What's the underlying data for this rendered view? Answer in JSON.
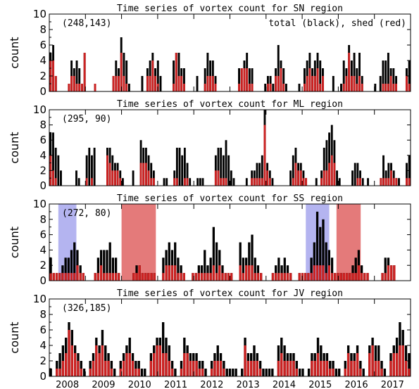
{
  "chart_data": [
    {
      "type": "bar",
      "title": "Time series of vortex count for SN region",
      "ylabel": "count",
      "ylim": [
        0,
        10
      ],
      "yticks": [
        0,
        2,
        4,
        6,
        8,
        10
      ],
      "corner_label": "(248,143)",
      "legend_text": "total (black), shed (red)",
      "series": [
        {
          "name": "total",
          "color": "#000000",
          "values": [
            5,
            6,
            2,
            0,
            0,
            0,
            0,
            1,
            4,
            3,
            4,
            3,
            1,
            5,
            0,
            0,
            0,
            1,
            0,
            0,
            0,
            0,
            0,
            0,
            2,
            4,
            3,
            7,
            5,
            4,
            1,
            0,
            0,
            0,
            0,
            2,
            0,
            3,
            4,
            5,
            3,
            4,
            2,
            0,
            0,
            0,
            0,
            4,
            5,
            5,
            3,
            3,
            0,
            0,
            0,
            0,
            2,
            0,
            0,
            3,
            5,
            4,
            4,
            2,
            0,
            0,
            0,
            0,
            0,
            0,
            0,
            0,
            3,
            3,
            4,
            5,
            3,
            3,
            0,
            0,
            0,
            0,
            1,
            2,
            2,
            1,
            3,
            6,
            4,
            3,
            1,
            0,
            0,
            0,
            0,
            1,
            0,
            3,
            4,
            5,
            3,
            4,
            5,
            4,
            3,
            0,
            0,
            0,
            2,
            0,
            0,
            1,
            4,
            3,
            6,
            4,
            5,
            3,
            5,
            2,
            0,
            0,
            0,
            0,
            1,
            0,
            2,
            4,
            4,
            5,
            3,
            3,
            2,
            0,
            0,
            0,
            3,
            4
          ]
        },
        {
          "name": "shed",
          "color": "#cc2222",
          "values": [
            4,
            4,
            2,
            0,
            0,
            0,
            0,
            1,
            2,
            2,
            1,
            1,
            1,
            5,
            0,
            0,
            0,
            1,
            0,
            0,
            0,
            0,
            0,
            0,
            2,
            2,
            2,
            5,
            2,
            1,
            0,
            0,
            0,
            0,
            0,
            0,
            0,
            2,
            2,
            4,
            2,
            1,
            0,
            0,
            0,
            0,
            0,
            1,
            5,
            2,
            2,
            1,
            0,
            0,
            0,
            0,
            0,
            0,
            0,
            1,
            2,
            2,
            2,
            1,
            0,
            0,
            0,
            0,
            0,
            0,
            0,
            0,
            1,
            3,
            3,
            3,
            1,
            1,
            0,
            0,
            0,
            0,
            0,
            1,
            1,
            0,
            2,
            2,
            3,
            1,
            0,
            0,
            0,
            0,
            0,
            0,
            0,
            1,
            2,
            3,
            2,
            2,
            3,
            1,
            2,
            0,
            0,
            0,
            0,
            0,
            0,
            0,
            1,
            2,
            5,
            2,
            2,
            1,
            2,
            1,
            0,
            0,
            0,
            0,
            0,
            0,
            0,
            1,
            1,
            1,
            2,
            1,
            1,
            0,
            0,
            0,
            2,
            1
          ]
        }
      ]
    },
    {
      "type": "bar",
      "title": "Time series of vortex count for ML region",
      "ylabel": "count",
      "ylim": [
        0,
        10
      ],
      "yticks": [
        0,
        2,
        4,
        6,
        8,
        10
      ],
      "corner_label": "(295, 90)",
      "series": [
        {
          "name": "total",
          "color": "#000000",
          "values": [
            7,
            7,
            5,
            4,
            2,
            0,
            0,
            0,
            0,
            0,
            2,
            1,
            0,
            0,
            4,
            5,
            4,
            5,
            0,
            0,
            0,
            0,
            5,
            5,
            4,
            3,
            3,
            2,
            1,
            0,
            0,
            0,
            2,
            0,
            0,
            6,
            5,
            5,
            4,
            3,
            2,
            0,
            0,
            0,
            1,
            1,
            0,
            0,
            2,
            5,
            5,
            4,
            5,
            3,
            1,
            0,
            0,
            1,
            1,
            1,
            0,
            0,
            0,
            0,
            4,
            5,
            5,
            4,
            6,
            4,
            2,
            1,
            0,
            0,
            0,
            0,
            1,
            0,
            2,
            2,
            3,
            3,
            4,
            10,
            3,
            2,
            1,
            0,
            0,
            0,
            0,
            0,
            0,
            2,
            4,
            5,
            3,
            3,
            2,
            1,
            0,
            0,
            0,
            1,
            0,
            2,
            5,
            6,
            7,
            8,
            6,
            2,
            1,
            0,
            0,
            0,
            0,
            2,
            3,
            3,
            2,
            1,
            0,
            1,
            0,
            0,
            0,
            0,
            1,
            4,
            2,
            3,
            3,
            2,
            1,
            1,
            0,
            0,
            3,
            4
          ]
        },
        {
          "name": "shed",
          "color": "#cc2222",
          "values": [
            4,
            2,
            1,
            0,
            0,
            0,
            0,
            0,
            0,
            0,
            0,
            0,
            0,
            0,
            1,
            0,
            1,
            0,
            0,
            0,
            0,
            0,
            4,
            3,
            2,
            2,
            2,
            1,
            0,
            0,
            0,
            0,
            0,
            0,
            0,
            3,
            3,
            3,
            2,
            1,
            1,
            0,
            0,
            0,
            0,
            0,
            0,
            0,
            1,
            1,
            0,
            0,
            1,
            1,
            0,
            0,
            0,
            0,
            0,
            0,
            0,
            0,
            0,
            0,
            2,
            2,
            1,
            1,
            1,
            0,
            0,
            0,
            0,
            0,
            0,
            0,
            0,
            0,
            1,
            1,
            1,
            1,
            1,
            8,
            2,
            1,
            0,
            0,
            0,
            0,
            0,
            0,
            0,
            0,
            1,
            3,
            2,
            2,
            1,
            1,
            0,
            0,
            0,
            0,
            0,
            1,
            2,
            2,
            3,
            4,
            3,
            0,
            0,
            0,
            0,
            0,
            0,
            0,
            0,
            1,
            1,
            0,
            0,
            0,
            0,
            0,
            0,
            0,
            1,
            1,
            1,
            1,
            2,
            1,
            1,
            0,
            0,
            0,
            1,
            1
          ]
        }
      ]
    },
    {
      "type": "bar",
      "title": "Time series of vortex count for SS region",
      "ylabel": "count",
      "ylim": [
        0,
        10
      ],
      "yticks": [
        0,
        2,
        4,
        6,
        8,
        10
      ],
      "corner_label": "(272, 80)",
      "shaded_periods": [
        {
          "start": 2008.25,
          "end": 2008.75,
          "color": "#b4b4f0"
        },
        {
          "start": 2010.0,
          "end": 2010.95,
          "color": "#e47a7a"
        },
        {
          "start": 2015.1,
          "end": 2015.75,
          "color": "#b4b4f0"
        },
        {
          "start": 2015.95,
          "end": 2016.62,
          "color": "#e47a7a"
        }
      ],
      "series": [
        {
          "name": "total",
          "color": "#000000",
          "values": [
            3,
            1,
            1,
            1,
            2,
            3,
            3,
            4,
            5,
            4,
            2,
            1,
            0,
            0,
            0,
            1,
            3,
            4,
            4,
            4,
            5,
            3,
            3,
            1,
            0,
            0,
            0,
            0,
            1,
            2,
            2,
            1,
            1,
            1,
            1,
            1,
            0,
            0,
            3,
            4,
            5,
            4,
            5,
            3,
            2,
            1,
            0,
            0,
            1,
            1,
            2,
            2,
            4,
            2,
            3,
            7,
            5,
            4,
            2,
            1,
            1,
            1,
            0,
            0,
            5,
            3,
            3,
            5,
            6,
            3,
            2,
            1,
            0,
            0,
            0,
            1,
            2,
            3,
            2,
            3,
            2,
            1,
            0,
            0,
            1,
            1,
            1,
            1,
            3,
            5,
            9,
            7,
            8,
            5,
            4,
            3,
            1,
            1,
            1,
            1,
            1,
            1,
            2,
            3,
            4,
            2,
            1,
            1,
            0,
            0,
            0,
            0,
            1,
            3,
            3,
            2,
            2,
            0,
            0,
            0,
            0,
            0
          ]
        },
        {
          "name": "shed",
          "color": "#cc2222",
          "values": [
            1,
            1,
            1,
            1,
            1,
            1,
            1,
            1,
            1,
            2,
            1,
            1,
            0,
            0,
            0,
            1,
            1,
            2,
            1,
            1,
            1,
            1,
            1,
            1,
            0,
            0,
            0,
            0,
            1,
            1,
            2,
            1,
            1,
            1,
            1,
            1,
            0,
            0,
            1,
            2,
            2,
            2,
            2,
            1,
            1,
            1,
            0,
            0,
            1,
            1,
            1,
            1,
            1,
            1,
            1,
            2,
            1,
            2,
            1,
            1,
            1,
            1,
            0,
            0,
            2,
            1,
            2,
            2,
            2,
            1,
            1,
            1,
            0,
            0,
            0,
            1,
            1,
            1,
            1,
            1,
            1,
            1,
            0,
            0,
            1,
            1,
            1,
            1,
            1,
            2,
            2,
            2,
            2,
            1,
            2,
            1,
            1,
            1,
            1,
            1,
            1,
            1,
            1,
            1,
            2,
            1,
            1,
            1,
            0,
            0,
            0,
            0,
            1,
            1,
            2,
            2,
            2,
            0,
            0,
            0,
            0,
            0
          ]
        }
      ]
    },
    {
      "type": "bar",
      "title": "Time series of vortex count for JV region",
      "ylabel": "count",
      "ylim": [
        0,
        10
      ],
      "yticks": [
        0,
        2,
        4,
        6,
        8,
        10
      ],
      "corner_label": "(326,185)",
      "xlabels": [
        "2008",
        "2009",
        "2010",
        "2011",
        "2012",
        "2013",
        "2014",
        "2015",
        "2016",
        "2017"
      ],
      "series": [
        {
          "name": "total",
          "color": "#000000",
          "values": [
            1,
            0,
            2,
            3,
            4,
            5,
            7,
            6,
            4,
            3,
            2,
            1,
            0,
            2,
            3,
            5,
            4,
            6,
            4,
            3,
            2,
            1,
            0,
            2,
            3,
            4,
            5,
            3,
            2,
            2,
            1,
            1,
            0,
            3,
            4,
            5,
            5,
            7,
            5,
            4,
            2,
            1,
            0,
            2,
            5,
            4,
            3,
            3,
            3,
            2,
            2,
            1,
            0,
            2,
            3,
            4,
            3,
            2,
            1,
            1,
            1,
            1,
            0,
            1,
            5,
            3,
            3,
            4,
            3,
            2,
            1,
            1,
            1,
            1,
            0,
            4,
            5,
            4,
            3,
            3,
            3,
            2,
            1,
            1,
            0,
            1,
            3,
            3,
            5,
            4,
            3,
            3,
            2,
            2,
            1,
            1,
            0,
            2,
            4,
            3,
            3,
            4,
            2,
            1,
            0,
            4,
            5,
            4,
            4,
            2,
            1,
            0,
            3,
            4,
            5,
            7,
            6,
            4,
            3
          ]
        },
        {
          "name": "shed",
          "color": "#cc2222",
          "values": [
            0,
            0,
            1,
            1,
            2,
            3,
            6,
            4,
            3,
            2,
            1,
            0,
            0,
            1,
            2,
            4,
            3,
            4,
            2,
            2,
            1,
            0,
            0,
            1,
            2,
            3,
            3,
            2,
            1,
            1,
            0,
            0,
            0,
            2,
            3,
            4,
            4,
            3,
            3,
            2,
            1,
            0,
            0,
            1,
            3,
            3,
            2,
            2,
            2,
            1,
            1,
            0,
            0,
            1,
            2,
            2,
            2,
            1,
            0,
            0,
            0,
            0,
            0,
            0,
            4,
            2,
            2,
            2,
            2,
            1,
            0,
            0,
            0,
            0,
            0,
            2,
            3,
            2,
            2,
            2,
            2,
            1,
            0,
            0,
            0,
            0,
            2,
            2,
            3,
            2,
            2,
            2,
            1,
            1,
            0,
            0,
            0,
            1,
            3,
            2,
            2,
            3,
            1,
            0,
            0,
            3,
            4,
            2,
            2,
            1,
            0,
            0,
            2,
            3,
            3,
            4,
            4,
            2,
            1
          ]
        }
      ]
    }
  ]
}
